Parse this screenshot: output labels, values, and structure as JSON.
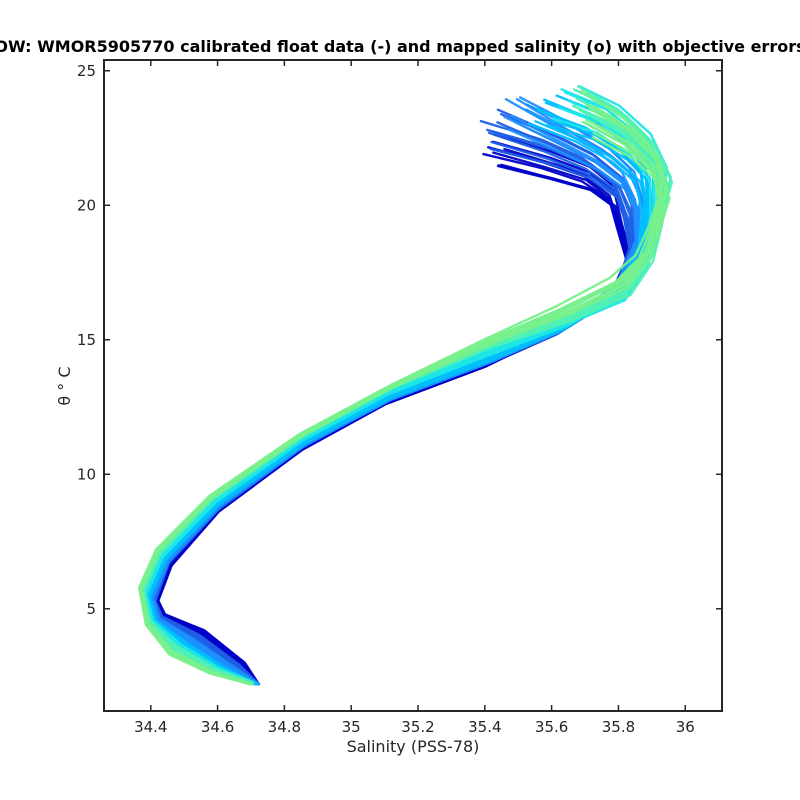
{
  "chart_data": {
    "type": "line",
    "title": "OW: WMOR5905770 calibrated float data (-) and mapped salinity (o) with objective errors",
    "xlabel": "Salinity (PSS-78)",
    "ylabel": "θ ° C",
    "xlim": [
      34.26,
      36.11
    ],
    "ylim": [
      1.2,
      25.4
    ],
    "xticks": [
      34.4,
      34.6,
      34.8,
      35,
      35.2,
      35.4,
      35.6,
      35.8,
      36
    ],
    "xtick_labels": [
      "34.4",
      "34.6",
      "34.8",
      "35",
      "35.2",
      "35.4",
      "35.6",
      "35.8",
      "36"
    ],
    "yticks": [
      5,
      10,
      15,
      20,
      25
    ],
    "ytick_labels": [
      "5",
      "10",
      "15",
      "20",
      "25"
    ],
    "grid": false,
    "colormap": [
      "#0000c8",
      "#1f5fe6",
      "#1e90ff",
      "#00bfff",
      "#1ee6e6",
      "#50f0b4",
      "#78f08c"
    ],
    "series": [
      {
        "x": [
          35.45,
          35.6,
          35.72,
          35.78,
          35.8,
          35.83,
          35.78,
          35.6,
          35.4,
          35.1,
          34.85,
          34.6,
          34.46,
          34.42,
          34.44,
          34.56,
          34.68,
          34.72
        ],
        "y": [
          21.5,
          21.0,
          20.6,
          20.0,
          19.0,
          17.8,
          16.6,
          15.2,
          14.0,
          12.6,
          10.9,
          8.6,
          6.6,
          5.3,
          4.8,
          4.2,
          3.0,
          2.2
        ]
      },
      {
        "x": [
          35.4,
          35.58,
          35.7,
          35.79,
          35.82,
          35.84,
          35.8,
          35.62,
          35.4,
          35.1,
          34.85,
          34.6,
          34.45,
          34.41,
          34.43,
          34.54,
          34.66,
          34.72
        ],
        "y": [
          22.6,
          22.0,
          21.4,
          20.6,
          19.6,
          18.2,
          16.8,
          15.3,
          14.1,
          12.7,
          11.0,
          8.7,
          6.7,
          5.3,
          4.7,
          4.0,
          2.9,
          2.2
        ]
      },
      {
        "x": [
          35.48,
          35.62,
          35.74,
          35.82,
          35.86,
          35.86,
          35.8,
          35.62,
          35.42,
          35.12,
          34.86,
          34.6,
          34.45,
          34.4,
          34.42,
          34.52,
          34.64,
          34.72
        ],
        "y": [
          23.6,
          22.6,
          21.8,
          21.0,
          20.0,
          18.6,
          17.0,
          15.4,
          14.2,
          12.8,
          11.1,
          8.8,
          6.8,
          5.4,
          4.6,
          3.8,
          2.8,
          2.2
        ]
      },
      {
        "x": [
          35.58,
          35.72,
          35.82,
          35.88,
          35.89,
          35.87,
          35.8,
          35.63,
          35.42,
          35.12,
          34.86,
          34.6,
          34.44,
          34.39,
          34.41,
          34.5,
          34.62,
          34.71
        ],
        "y": [
          23.4,
          22.8,
          22.0,
          21.2,
          20.0,
          18.4,
          16.8,
          15.4,
          14.3,
          12.9,
          11.2,
          8.9,
          6.9,
          5.5,
          4.5,
          3.6,
          2.7,
          2.2
        ]
      },
      {
        "x": [
          35.66,
          35.78,
          35.88,
          35.93,
          35.92,
          35.89,
          35.82,
          35.64,
          35.4,
          35.1,
          34.84,
          34.58,
          34.43,
          34.38,
          34.4,
          34.48,
          34.6,
          34.7
        ],
        "y": [
          24.0,
          23.4,
          22.4,
          21.2,
          19.6,
          18.0,
          16.6,
          15.6,
          14.6,
          13.1,
          11.3,
          9.0,
          7.0,
          5.6,
          4.6,
          3.7,
          2.8,
          2.3
        ]
      },
      {
        "x": [
          35.7,
          35.82,
          35.9,
          35.95,
          35.92,
          35.9,
          35.84,
          35.66,
          35.42,
          35.12,
          34.85,
          34.58,
          34.42,
          34.37,
          34.39,
          34.46,
          34.58,
          34.7
        ],
        "y": [
          23.9,
          23.0,
          22.0,
          20.8,
          19.4,
          18.2,
          17.0,
          15.9,
          14.8,
          13.2,
          11.4,
          9.1,
          7.1,
          5.7,
          4.5,
          3.5,
          2.7,
          2.2
        ]
      },
      {
        "x": [
          35.72,
          35.84,
          35.92,
          35.93,
          35.9,
          35.86,
          35.78,
          35.62,
          35.4,
          35.12,
          34.85,
          34.58,
          34.42,
          34.37,
          34.39,
          34.46,
          34.58,
          34.7
        ],
        "y": [
          22.8,
          22.0,
          21.0,
          20.0,
          19.0,
          18.0,
          17.2,
          16.2,
          15.0,
          13.3,
          11.5,
          9.2,
          7.2,
          5.8,
          4.4,
          3.3,
          2.6,
          2.2
        ]
      }
    ]
  }
}
